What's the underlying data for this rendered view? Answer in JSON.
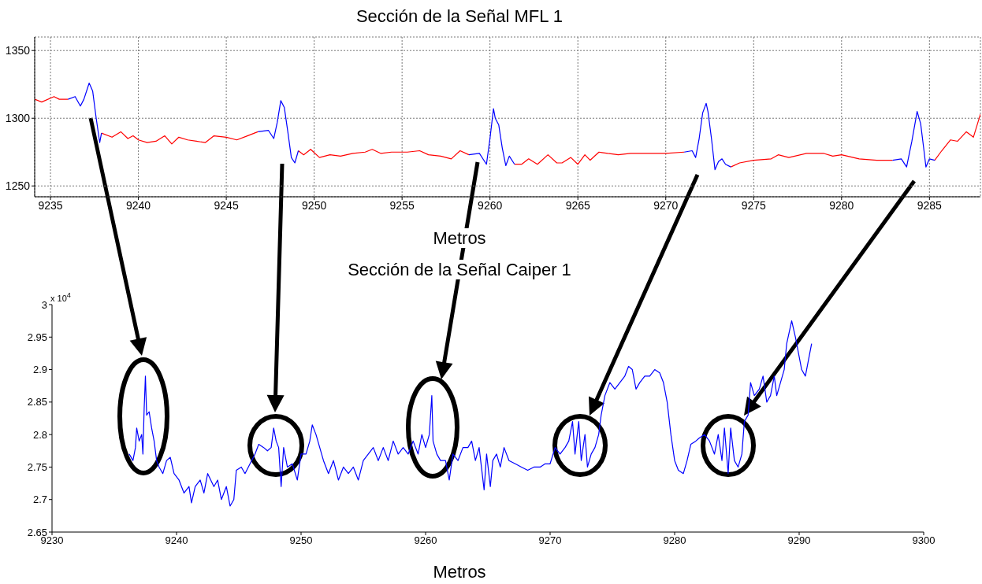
{
  "chart_data": [
    {
      "type": "line",
      "title": "Sección de la Señal MFL 1",
      "xlabel": "Metros",
      "xlim": [
        9234.1,
        9287.9
      ],
      "xticks": [
        9235,
        9240,
        9245,
        9250,
        9255,
        9260,
        9265,
        9270,
        9275,
        9280,
        9285
      ],
      "ylim": [
        1242,
        1360
      ],
      "yticks": [
        1250,
        1300,
        1350
      ],
      "grid": true,
      "series": [
        {
          "color": "#ff0000",
          "x": [
            9234.1,
            9234.5,
            9235.2,
            9235.5,
            9236.0,
            9237.0,
            9237.9,
            9238.5,
            9239.0,
            9239.4,
            9239.7,
            9240.0,
            9240.5,
            9241.0,
            9241.5,
            9241.9,
            9242.3,
            9242.8,
            9243.3,
            9243.8,
            9244.3,
            9245.0,
            9245.6,
            9246.2,
            9246.8,
            9248.0,
            9249.1,
            9249.4,
            9249.8,
            9250.3,
            9250.9,
            9251.5,
            9252.2,
            9252.9,
            9253.3,
            9253.8,
            9254.4,
            9255.3,
            9256.0,
            9256.5,
            9257.2,
            9257.8,
            9258.3,
            9258.8,
            9260.0,
            9261.4,
            9261.8,
            9262.2,
            9262.7,
            9263.3,
            9263.8,
            9264.1,
            9264.6,
            9265.0,
            9265.4,
            9265.7,
            9266.2,
            9266.7,
            9267.3,
            9268.0,
            9269.0,
            9270.0,
            9271.05,
            9272.0,
            9273.7,
            9274.2,
            9275.0,
            9276.0,
            9276.4,
            9277.0,
            9278.0,
            9279.0,
            9279.5,
            9280.0,
            9281.0,
            9282.0,
            9282.9,
            9284.0,
            9285.3,
            9285.7,
            9286.2,
            9286.6,
            9287.1,
            9287.5,
            9287.9
          ],
          "values": [
            1314,
            1312,
            1316,
            1314,
            1314,
            null,
            1289,
            1286,
            1290,
            1285,
            1287,
            1284,
            1282,
            1283,
            1287,
            1281,
            1286,
            1284,
            1283,
            1282,
            1287,
            1286,
            1284,
            1287,
            1290,
            null,
            1276,
            1273,
            1277,
            1271,
            1273,
            1272,
            1274,
            1275,
            1277,
            1274,
            1275,
            1275,
            1276,
            1273,
            1272,
            1270,
            1276,
            1273,
            null,
            1266,
            1266,
            1270,
            1266,
            1273,
            1267,
            1267,
            1271,
            1266,
            1273,
            1269,
            1275,
            1274,
            1273,
            1274,
            1274,
            1274,
            1275,
            null,
            1264,
            1267,
            1269,
            1270,
            1273,
            1271,
            1274,
            1274,
            1272,
            1273,
            1270,
            1269,
            1269,
            null,
            1269,
            1276,
            1284,
            1283,
            1290,
            1286,
            1303
          ]
        },
        {
          "color": "#0000ff",
          "x": [
            9236.0,
            9236.4,
            9236.7,
            9236.9,
            9237.2,
            9237.4,
            9237.6,
            9237.8,
            9237.9,
            9242.0,
            9246.8,
            9247.4,
            9247.7,
            9247.9,
            9248.1,
            9248.3,
            9248.5,
            9248.7,
            9248.9,
            9249.1,
            9254.0,
            9258.8,
            9259.4,
            9259.8,
            9260.0,
            9260.2,
            9260.3,
            9260.5,
            9260.7,
            9260.9,
            9261.1,
            9261.4,
            9266.0,
            9271.05,
            9271.5,
            9271.7,
            9271.9,
            9272.1,
            9272.3,
            9272.4,
            9272.6,
            9272.8,
            9273.0,
            9273.2,
            9273.4,
            9273.7,
            9278.0,
            9282.9,
            9283.4,
            9283.7,
            9284.0,
            9284.3,
            9284.5,
            9284.7,
            9284.8,
            9285.0,
            9285.3
          ],
          "values": [
            1314,
            1316,
            1309,
            1314,
            1326,
            1320,
            1300,
            1282,
            1289,
            null,
            1290,
            1291,
            1285,
            1297,
            1313,
            1308,
            1290,
            1271,
            1267,
            1276,
            null,
            1273,
            1274,
            1266,
            1285,
            1307,
            1300,
            1295,
            1278,
            1265,
            1272,
            1266,
            null,
            1275,
            1276,
            1271,
            1285,
            1304,
            1311,
            1305,
            1285,
            1262,
            1268,
            1270,
            1266,
            1264,
            null,
            1269,
            1270,
            1264,
            1283,
            1305,
            1296,
            1275,
            1264,
            1270,
            1269
          ]
        }
      ]
    },
    {
      "type": "line",
      "title": "Sección de la Señal Caiper 1",
      "xlabel": "Metros",
      "annotations": [
        "x 10$^{4}$"
      ],
      "xlim": [
        9230,
        9300
      ],
      "xticks": [
        9230,
        9240,
        9250,
        9260,
        9270,
        9280,
        9290,
        9300
      ],
      "ylim": [
        2.65,
        3
      ],
      "yticks": [
        2.65,
        2.7,
        2.75,
        2.8,
        2.85,
        2.9,
        2.95,
        3
      ],
      "series": [
        {
          "color": "#0000ff",
          "x": [
            9236.2,
            9236.5,
            9236.7,
            9236.8,
            9237.0,
            9237.2,
            9237.3,
            9237.4,
            9237.5,
            9237.6,
            9237.8,
            9238.0,
            9238.2,
            9238.4,
            9238.6,
            9238.9,
            9239.2,
            9239.5,
            9239.8,
            9240.2,
            9240.6,
            9241.0,
            9241.2,
            9241.5,
            9241.9,
            9242.2,
            9242.5,
            9243.0,
            9243.3,
            9243.6,
            9244.0,
            9244.3,
            9244.6,
            9244.8,
            9245.2,
            9245.5,
            9245.9,
            9246.3,
            9246.6,
            9247.0,
            9247.3,
            9247.6,
            9247.8,
            9248.0,
            9248.2,
            9248.4,
            9248.6,
            9248.9,
            9249.3,
            9249.7,
            9250.0,
            9250.4,
            9250.7,
            9250.9,
            9251.2,
            9251.5,
            9251.8,
            9252.2,
            9252.6,
            9253.0,
            9253.4,
            9253.8,
            9254.2,
            9254.6,
            9255.0,
            9255.4,
            9255.8,
            9256.2,
            9256.6,
            9257.0,
            9257.4,
            9257.8,
            9258.2,
            9258.6,
            9259.0,
            9259.4,
            9259.7,
            9260.0,
            9260.3,
            9260.5,
            9260.6,
            9260.9,
            9261.2,
            9261.6,
            9261.9,
            9262.2,
            9262.6,
            9263.0,
            9263.4,
            9263.7,
            9264.0,
            9264.3,
            9264.7,
            9264.9,
            9265.2,
            9265.4,
            9265.7,
            9266.0,
            9266.3,
            9266.7,
            9267.2,
            9267.7,
            9268.2,
            9268.7,
            9269.2,
            9269.6,
            9270.0,
            9270.4,
            9270.8,
            9271.2,
            9271.5,
            9271.8,
            9272.0,
            9272.3,
            9272.5,
            9272.8,
            9273.0,
            9273.3,
            9273.6,
            9273.9,
            9274.1,
            9274.4,
            9274.8,
            9275.2,
            9275.6,
            9276.0,
            9276.3,
            9276.6,
            9276.9,
            9277.2,
            9277.6,
            9278.0,
            9278.4,
            9278.8,
            9279.1,
            9279.4,
            9279.7,
            9280.0,
            9280.3,
            9280.7,
            9281.0,
            9281.3,
            9281.7,
            9282.0,
            9282.4,
            9282.8,
            9283.2,
            9283.5,
            9283.8,
            9284.0,
            9284.3,
            9284.5,
            9284.8,
            9285.1,
            9285.4,
            9285.6,
            9285.9,
            9286.1,
            9286.4,
            9286.8,
            9287.1,
            9287.4,
            9287.7,
            9288.0,
            9288.2,
            9288.5,
            9288.8,
            9289.0,
            9289.4,
            9289.7,
            9290.0,
            9290.2,
            9290.5,
            9290.7,
            9291.0
          ],
          "values": [
            2.77,
            2.76,
            2.78,
            2.81,
            2.79,
            2.8,
            2.77,
            2.84,
            2.89,
            2.83,
            2.835,
            2.81,
            2.79,
            2.76,
            2.75,
            2.74,
            2.76,
            2.765,
            2.74,
            2.73,
            2.71,
            2.72,
            2.695,
            2.72,
            2.73,
            2.71,
            2.74,
            2.72,
            2.73,
            2.7,
            2.72,
            2.69,
            2.7,
            2.745,
            2.75,
            2.74,
            2.755,
            2.77,
            2.785,
            2.78,
            2.775,
            2.78,
            2.81,
            2.79,
            2.78,
            2.72,
            2.78,
            2.75,
            2.755,
            2.73,
            2.77,
            2.77,
            2.79,
            2.815,
            2.8,
            2.78,
            2.76,
            2.74,
            2.76,
            2.73,
            2.75,
            2.74,
            2.75,
            2.73,
            2.76,
            2.77,
            2.78,
            2.76,
            2.78,
            2.76,
            2.79,
            2.77,
            2.78,
            2.77,
            2.79,
            2.77,
            2.8,
            2.78,
            2.8,
            2.86,
            2.79,
            2.77,
            2.76,
            2.76,
            2.73,
            2.77,
            2.76,
            2.78,
            2.78,
            2.79,
            2.76,
            2.78,
            2.715,
            2.77,
            2.72,
            2.76,
            2.77,
            2.75,
            2.78,
            2.76,
            2.755,
            2.75,
            2.745,
            2.75,
            2.75,
            2.755,
            2.755,
            2.78,
            2.77,
            2.78,
            2.79,
            2.82,
            2.77,
            2.82,
            2.76,
            2.8,
            2.75,
            2.77,
            2.78,
            2.8,
            2.83,
            2.86,
            2.88,
            2.87,
            2.88,
            2.89,
            2.905,
            2.9,
            2.87,
            2.88,
            2.89,
            2.89,
            2.9,
            2.895,
            2.88,
            2.85,
            2.8,
            2.76,
            2.745,
            2.74,
            2.76,
            2.785,
            2.79,
            2.795,
            2.8,
            2.79,
            2.77,
            2.8,
            2.76,
            2.81,
            2.74,
            2.81,
            2.76,
            2.75,
            2.77,
            2.82,
            2.83,
            2.88,
            2.86,
            2.87,
            2.89,
            2.85,
            2.86,
            2.89,
            2.86,
            2.88,
            2.9,
            2.94,
            2.975,
            2.95,
            2.92,
            2.9,
            2.89,
            2.91,
            2.94
          ]
        }
      ]
    }
  ]
}
